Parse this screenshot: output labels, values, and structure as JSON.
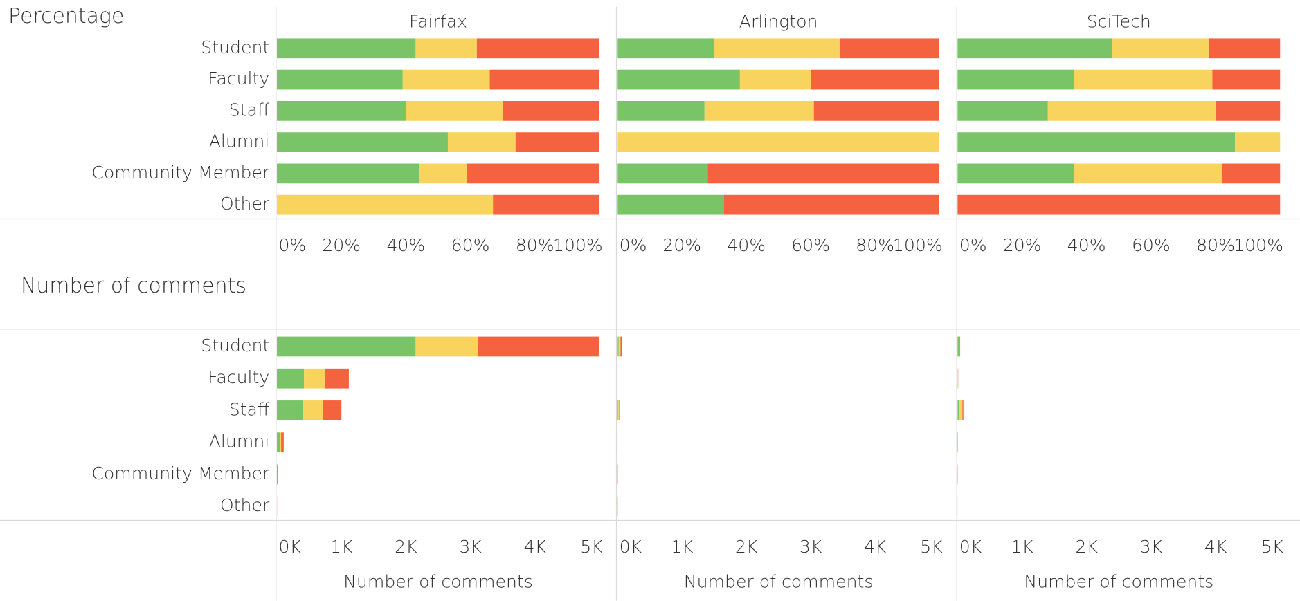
{
  "chart_data": [
    {
      "type": "bar",
      "stacked": true,
      "orientation": "horizontal",
      "title": "Percentage",
      "categories": [
        "Student",
        "Faculty",
        "Staff",
        "Alumni",
        "Community Member",
        "Other"
      ],
      "xlim": [
        0,
        100
      ],
      "xticks": [
        {
          "value": 0,
          "label": "0%"
        },
        {
          "value": 20,
          "label": "20%"
        },
        {
          "value": 40,
          "label": "40%"
        },
        {
          "value": 60,
          "label": "60%"
        },
        {
          "value": 80,
          "label": "80%"
        },
        {
          "value": 100,
          "label": "100%"
        }
      ],
      "panels": [
        {
          "title": "Fairfax",
          "series": [
            {
              "color": "#78c466",
              "values": [
                43,
                39,
                40,
                53,
                44,
                0
              ]
            },
            {
              "color": "#f8d35d",
              "values": [
                19,
                27,
                30,
                21,
                15,
                67
              ]
            },
            {
              "color": "#f4623f",
              "values": [
                38,
                34,
                30,
                26,
                41,
                33
              ]
            }
          ]
        },
        {
          "title": "Arlington",
          "series": [
            {
              "color": "#78c466",
              "values": [
                30,
                38,
                27,
                0,
                28,
                33
              ]
            },
            {
              "color": "#f8d35d",
              "values": [
                39,
                22,
                34,
                100,
                0,
                0
              ]
            },
            {
              "color": "#f4623f",
              "values": [
                31,
                40,
                39,
                0,
                72,
                67
              ]
            }
          ]
        },
        {
          "title": "SciTech",
          "series": [
            {
              "color": "#78c466",
              "values": [
                48,
                36,
                28,
                86,
                36,
                0
              ]
            },
            {
              "color": "#f8d35d",
              "values": [
                30,
                43,
                52,
                14,
                46,
                0
              ]
            },
            {
              "color": "#f4623f",
              "values": [
                22,
                21,
                20,
                0,
                18,
                100
              ]
            }
          ]
        }
      ]
    },
    {
      "type": "bar",
      "stacked": true,
      "orientation": "horizontal",
      "title": "Number of comments",
      "x_label": "Number of comments",
      "categories": [
        "Student",
        "Faculty",
        "Staff",
        "Alumni",
        "Community Member",
        "Other"
      ],
      "xlim": [
        0,
        5000
      ],
      "xticks": [
        {
          "value": 0,
          "label": "0K"
        },
        {
          "value": 1000,
          "label": "1K"
        },
        {
          "value": 2000,
          "label": "2K"
        },
        {
          "value": 3000,
          "label": "3K"
        },
        {
          "value": 4000,
          "label": "4K"
        },
        {
          "value": 5000,
          "label": "5K"
        }
      ],
      "panels": [
        {
          "series": [
            {
              "color": "#78c466",
              "values": [
                2150,
                420,
                400,
                50,
                5,
                0
              ]
            },
            {
              "color": "#f8d35d",
              "values": [
                970,
                320,
                310,
                15,
                1,
                2
              ]
            },
            {
              "color": "#f4623f",
              "values": [
                1880,
                375,
                290,
                40,
                6,
                1
              ]
            }
          ]
        },
        {
          "series": [
            {
              "color": "#78c466",
              "values": [
                15,
                0,
                10,
                0,
                1,
                1
              ]
            },
            {
              "color": "#f8d35d",
              "values": [
                30,
                0,
                15,
                1,
                0,
                0
              ]
            },
            {
              "color": "#f4623f",
              "values": [
                20,
                0,
                15,
                0,
                3,
                2
              ]
            }
          ]
        },
        {
          "series": [
            {
              "color": "#78c466",
              "values": [
                20,
                3,
                25,
                6,
                2,
                0
              ]
            },
            {
              "color": "#f8d35d",
              "values": [
                12,
                5,
                50,
                1,
                3,
                0
              ]
            },
            {
              "color": "#f4623f",
              "values": [
                8,
                2,
                15,
                0,
                1,
                1
              ]
            }
          ]
        }
      ]
    }
  ]
}
